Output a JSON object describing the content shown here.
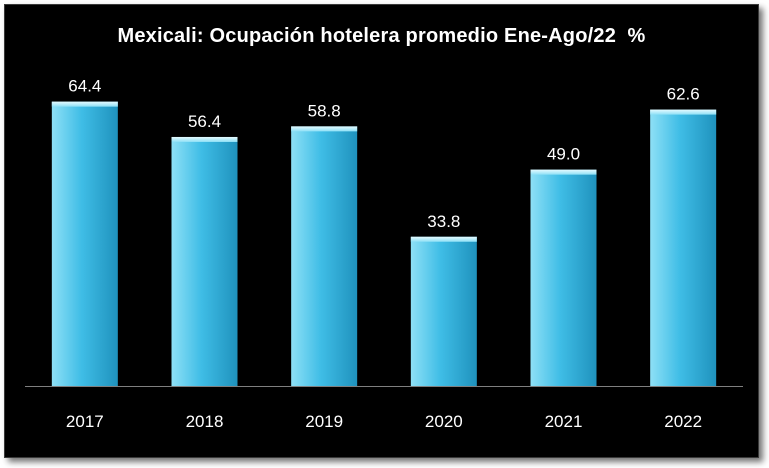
{
  "chart_data": {
    "type": "bar",
    "title": "Mexicali: Ocupación hotelera promedio Ene-Ago/22  %",
    "xlabel": "",
    "ylabel": "",
    "categories": [
      "2017",
      "2018",
      "2019",
      "2020",
      "2021",
      "2022"
    ],
    "values": [
      64.4,
      56.4,
      58.8,
      33.8,
      49.0,
      62.6
    ],
    "data_labels": [
      "64.4",
      "56.4",
      "58.8",
      "33.8",
      "49.0",
      "62.6"
    ],
    "ylim": [
      0,
      65
    ],
    "grid": false,
    "legend": "none",
    "colors": {
      "background": "#000000",
      "bar_light": "#8ee0f6",
      "bar_mid": "#3fbde6",
      "bar_dark": "#1f92bd",
      "axis": "#7f7f7f",
      "text": "#ffffff"
    }
  }
}
